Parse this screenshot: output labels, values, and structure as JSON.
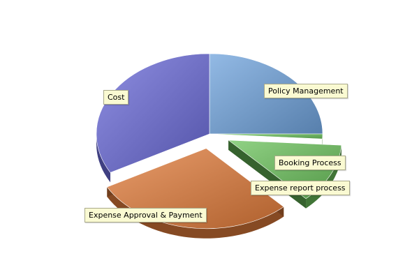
{
  "chart_data": {
    "type": "pie",
    "title": "",
    "style": "3d-tilted",
    "slices": [
      {
        "label": "Policy Management",
        "value": 25.0,
        "color": "#6fa3dc",
        "exploded": false
      },
      {
        "label": "Booking Process",
        "value": 1.0,
        "color": "#6cc35c",
        "exploded": false
      },
      {
        "label": "Expense report process",
        "value": 12.0,
        "color": "#6cc35c",
        "exploded": true
      },
      {
        "label": "Expense Approval & Payment",
        "value": 29.0,
        "color": "#e07b3a",
        "exploded": true
      },
      {
        "label": "Cost",
        "value": 33.0,
        "color": "#6a6ad8",
        "exploded": false
      }
    ],
    "label_background": "#fafad2"
  }
}
